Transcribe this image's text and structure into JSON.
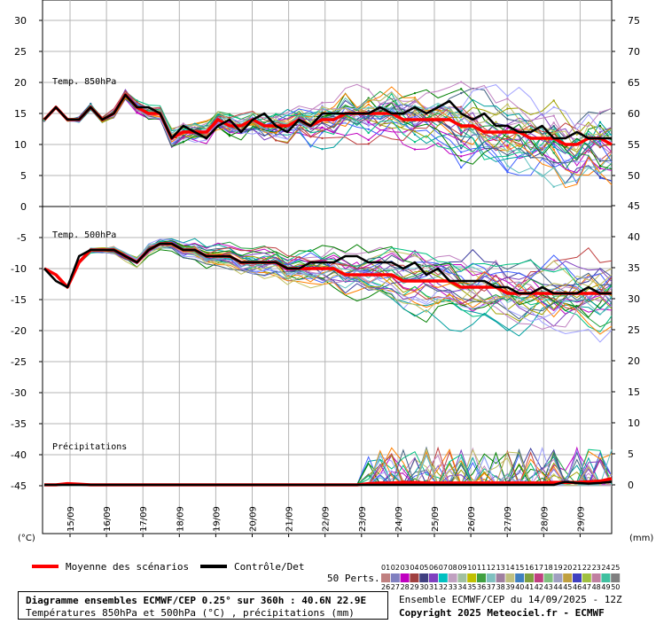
{
  "chart_data": {
    "type": "line",
    "left_ticks": [
      "30",
      "25",
      "20",
      "15",
      "10",
      "5",
      "0",
      "-5",
      "-10",
      "-15",
      "-20",
      "-25",
      "-30",
      "-35",
      "-40",
      "-45"
    ],
    "left_unit": "(°C)",
    "right_ticks_850": [
      "75",
      "70",
      "65",
      "60",
      "55",
      "50"
    ],
    "right_ticks_500": [
      "45",
      "40",
      "35",
      "30",
      "25",
      "20",
      "15",
      "10",
      "5",
      "0"
    ],
    "right_unit": "(mm)",
    "x_ticks": [
      "15/09",
      "16/09",
      "17/09",
      "18/09",
      "19/09",
      "20/09",
      "21/09",
      "22/09",
      "23/09",
      "24/09",
      "25/09",
      "26/09",
      "27/09",
      "28/09",
      "29/09"
    ],
    "panel_labels": {
      "t850": "Temp. 850hPa",
      "t500": "Temp. 500hPa",
      "precip": "Précipitations"
    },
    "legend": {
      "mean": "Moyenne des scénarios",
      "control": "Contrôle/Det",
      "perts": "50 Perts.",
      "pert_ids_row1": [
        "01",
        "02",
        "03",
        "04",
        "05",
        "06",
        "07",
        "08",
        "09",
        "10",
        "11",
        "12",
        "13",
        "14",
        "15",
        "16",
        "17",
        "18",
        "19",
        "20",
        "21",
        "22",
        "23",
        "24",
        "25"
      ],
      "pert_ids_row2": [
        "26",
        "27",
        "28",
        "29",
        "30",
        "31",
        "32",
        "33",
        "34",
        "35",
        "36",
        "37",
        "38",
        "39",
        "40",
        "41",
        "42",
        "43",
        "44",
        "45",
        "46",
        "47",
        "48",
        "49",
        "50"
      ]
    },
    "colors": {
      "mean": "#ff0000",
      "control": "#000000",
      "grid": "#b4b4b4"
    },
    "x_start": "2025-09-14T12:00",
    "x_step_hours": 6,
    "series": [
      {
        "name": "Moyenne des scénarios",
        "variable": "t850",
        "values": [
          14,
          16,
          14,
          14,
          16,
          14,
          15,
          18,
          16,
          15,
          15,
          11,
          12,
          12,
          12,
          14,
          13,
          13,
          14,
          13,
          13,
          13,
          14,
          13,
          14,
          14,
          15,
          15,
          15,
          15,
          15,
          14,
          14,
          14,
          14,
          14,
          13,
          13,
          12,
          12,
          12,
          12,
          11,
          11,
          11,
          10,
          10,
          11,
          11,
          10
        ]
      },
      {
        "name": "Contrôle/Det",
        "variable": "t850",
        "values": [
          14,
          16,
          14,
          14,
          16,
          14,
          15,
          18,
          16,
          16,
          15,
          11,
          13,
          12,
          11,
          13,
          14,
          12,
          14,
          15,
          13,
          12,
          14,
          13,
          15,
          15,
          15,
          15,
          15,
          16,
          15,
          15,
          16,
          15,
          16,
          17,
          15,
          14,
          15,
          13,
          13,
          12,
          12,
          13,
          11,
          11,
          12,
          11,
          11,
          11
        ]
      },
      {
        "name": "Moyenne des scénarios",
        "variable": "t500",
        "values": [
          -10,
          -11,
          -13,
          -9,
          -7,
          -7,
          -7,
          -8,
          -9,
          -7,
          -6,
          -6,
          -7,
          -7,
          -8,
          -8,
          -8,
          -9,
          -9,
          -9,
          -9,
          -10,
          -10,
          -10,
          -10,
          -10,
          -11,
          -11,
          -11,
          -11,
          -11,
          -12,
          -12,
          -12,
          -12,
          -12,
          -13,
          -13,
          -13,
          -13,
          -14,
          -14,
          -14,
          -14,
          -14,
          -14,
          -14,
          -14,
          -14,
          -14
        ]
      },
      {
        "name": "Contrôle/Det",
        "variable": "t500",
        "values": [
          -10,
          -12,
          -13,
          -8,
          -7,
          -7,
          -7,
          -8,
          -9,
          -7,
          -6,
          -6,
          -7,
          -7,
          -8,
          -8,
          -8,
          -9,
          -9,
          -9,
          -9,
          -10,
          -10,
          -9,
          -9,
          -9,
          -8,
          -8,
          -9,
          -9,
          -9,
          -10,
          -9,
          -11,
          -10,
          -12,
          -12,
          -12,
          -12,
          -13,
          -13,
          -14,
          -14,
          -13,
          -14,
          -14,
          -14,
          -13,
          -14,
          -14
        ]
      },
      {
        "name": "Moyenne des scénarios",
        "variable": "precip_mm",
        "values": [
          0,
          0,
          0.2,
          0.1,
          0,
          0,
          0,
          0,
          0,
          0,
          0,
          0,
          0,
          0,
          0,
          0,
          0,
          0,
          0,
          0,
          0,
          0,
          0,
          0,
          0,
          0,
          0,
          0,
          0.2,
          0.3,
          0.3,
          0.4,
          0.4,
          0.3,
          0.3,
          0.3,
          0.3,
          0.3,
          0.3,
          0.3,
          0.3,
          0.3,
          0.3,
          0.3,
          0.4,
          0.4,
          0.4,
          0.5,
          0.6,
          1
        ]
      },
      {
        "name": "Contrôle/Det",
        "variable": "precip_mm",
        "values": [
          0,
          0,
          0,
          0,
          0,
          0,
          0,
          0,
          0,
          0,
          0,
          0,
          0,
          0,
          0,
          0,
          0,
          0,
          0,
          0,
          0,
          0,
          0,
          0,
          0,
          0,
          0,
          0,
          0,
          0,
          0,
          0,
          0,
          0,
          0,
          0,
          0,
          0,
          0,
          0,
          0,
          0,
          0,
          0,
          0,
          0.5,
          0.3,
          0.2,
          0.3,
          0.5
        ]
      }
    ],
    "t850_ensemble_envelope": {
      "min_end": 5,
      "max_end": 22
    },
    "t500_ensemble_envelope": {
      "min_end": -20,
      "max_end": -5
    }
  },
  "footer": {
    "box_line1": "Diagramme ensembles ECMWF/CEP 0.25° sur 360h : 40.6N 22.9E",
    "box_line2": "Températures 850hPa et 500hPa (°C) , précipitations (mm)",
    "right_line1": "Ensemble ECMWF/CEP du 14/09/2025 - 12Z",
    "right_line2": "Copyright 2025 Meteociel.fr - ECMWF"
  }
}
